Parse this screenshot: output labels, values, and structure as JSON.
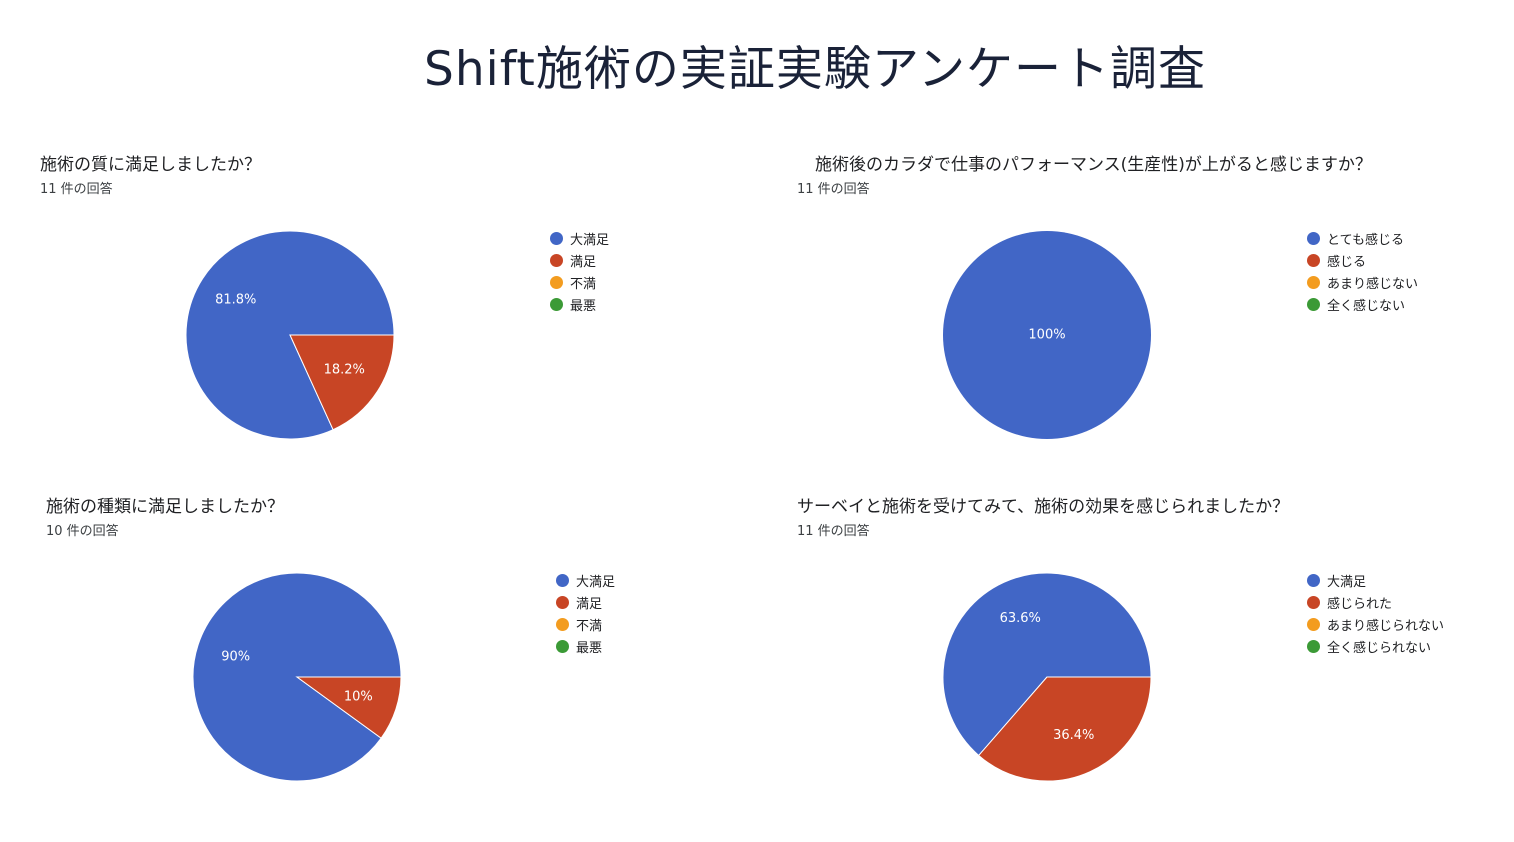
{
  "page": {
    "title": "Shift施術の実証実験アンケート調査"
  },
  "colors": {
    "blue": "#4166c6",
    "red": "#c84525",
    "orange": "#f39c1f",
    "green": "#3b9a36"
  },
  "chart_data": [
    {
      "type": "pie",
      "title": "施術の質に満足しましたか？",
      "subtitle": "11 件の回答",
      "categories": [
        "大満足",
        "満足",
        "不満",
        "最悪"
      ],
      "values": [
        81.8,
        18.2,
        0,
        0
      ],
      "labels": [
        "81.8%",
        "18.2%",
        "",
        ""
      ],
      "colors": [
        "#4166c6",
        "#c84525",
        "#f39c1f",
        "#3b9a36"
      ],
      "legend_position": "right"
    },
    {
      "type": "pie",
      "title": "施術後のカラダで仕事のパフォーマンス(生産性)が上がると感じますか？",
      "subtitle": "11 件の回答",
      "categories": [
        "とても感じる",
        "感じる",
        "あまり感じない",
        "全く感じない"
      ],
      "values": [
        100,
        0,
        0,
        0
      ],
      "labels": [
        "100%",
        "",
        "",
        ""
      ],
      "colors": [
        "#4166c6",
        "#c84525",
        "#f39c1f",
        "#3b9a36"
      ],
      "legend_position": "right"
    },
    {
      "type": "pie",
      "title": "施術の種類に満足しましたか？",
      "subtitle": "10 件の回答",
      "categories": [
        "大満足",
        "満足",
        "不満",
        "最悪"
      ],
      "values": [
        90,
        10,
        0,
        0
      ],
      "labels": [
        "90%",
        "10%",
        "",
        ""
      ],
      "colors": [
        "#4166c6",
        "#c84525",
        "#f39c1f",
        "#3b9a36"
      ],
      "legend_position": "right"
    },
    {
      "type": "pie",
      "title": "サーベイと施術を受けてみて、施術の効果を感じられましたか？",
      "subtitle": "11 件の回答",
      "categories": [
        "大満足",
        "感じられた",
        "あまり感じられない",
        "全く感じられない"
      ],
      "values": [
        63.6,
        36.4,
        0,
        0
      ],
      "labels": [
        "63.6%",
        "36.4%",
        "",
        ""
      ],
      "colors": [
        "#4166c6",
        "#c84525",
        "#f39c1f",
        "#3b9a36"
      ],
      "legend_position": "right"
    }
  ]
}
